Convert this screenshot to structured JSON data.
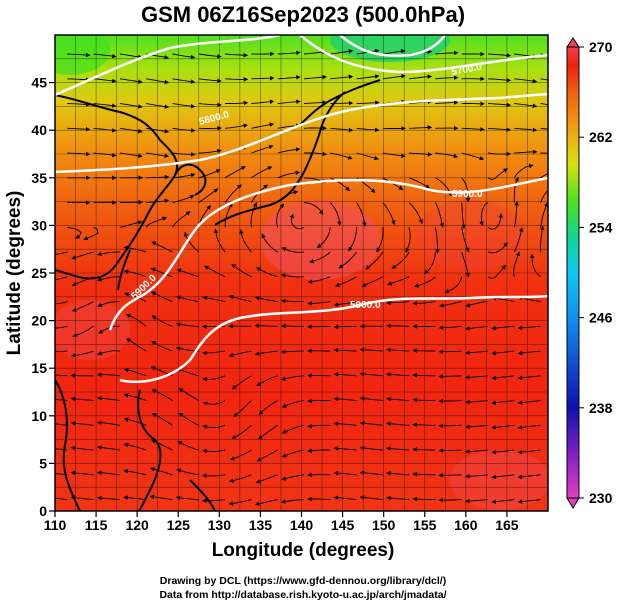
{
  "title": "GSM 06Z16Sep2023 (500.0hPa)",
  "x_axis": {
    "label": "Longitude (degrees)",
    "range": [
      110,
      170
    ],
    "ticks": [
      "110",
      "115",
      "120",
      "125",
      "130",
      "135",
      "140",
      "145",
      "150",
      "155",
      "160",
      "165"
    ]
  },
  "y_axis": {
    "label": "Latitude (degrees)",
    "range": [
      0,
      50
    ],
    "ticks": [
      "0",
      "5",
      "10",
      "15",
      "20",
      "25",
      "30",
      "35",
      "40",
      "45"
    ]
  },
  "colorbar": {
    "ticks": [
      "230",
      "238",
      "246",
      "254",
      "262",
      "270"
    ],
    "range": [
      230,
      270
    ],
    "colors": [
      "#e040c0",
      "#1010b0",
      "#1070e0",
      "#10c8f0",
      "#10d890",
      "#50e020",
      "#d8e010",
      "#f0a010",
      "#f06010",
      "#f02010",
      "#f04050"
    ]
  },
  "contours": [
    {
      "label": "5900.0",
      "level": 5900
    },
    {
      "label": "5800.0",
      "level": 5800
    },
    {
      "label": "5700.0",
      "level": 5700
    },
    {
      "label": "5600.0",
      "level": 5600
    }
  ],
  "credits": {
    "line1": "Drawing by DCL (https://www.gfd-dennou.org/library/dcl/)",
    "line2": "Data from http://database.rish.kyoto-u.ac.jp/arch/jmadata/"
  }
}
